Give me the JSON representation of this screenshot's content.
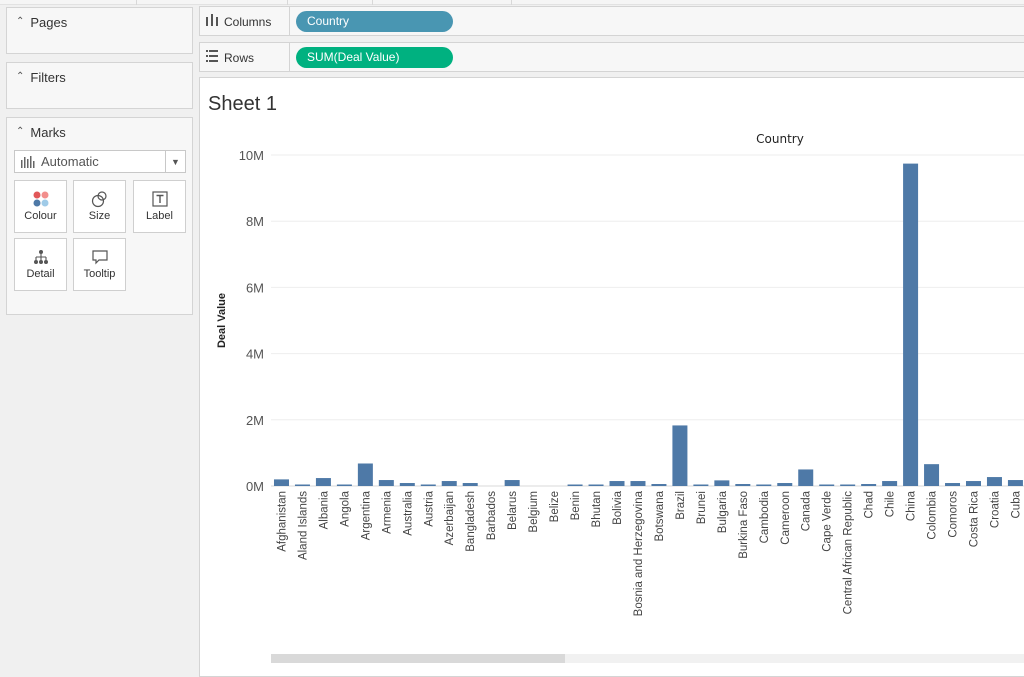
{
  "left_panel": {
    "pages": {
      "title": "Pages"
    },
    "filters": {
      "title": "Filters"
    },
    "marks": {
      "title": "Marks",
      "mark_type": "Automatic",
      "buttons": {
        "colour": "Colour",
        "size": "Size",
        "label": "Label",
        "detail": "Detail",
        "tooltip": "Tooltip"
      }
    }
  },
  "shelves": {
    "columns": {
      "label": "Columns",
      "pill": "Country",
      "pill_color": "#4996b2"
    },
    "rows": {
      "label": "Rows",
      "pill": "SUM(Deal Value)",
      "pill_color": "#00b180"
    }
  },
  "sheet": {
    "title": "Sheet 1"
  },
  "chart_data": {
    "type": "bar",
    "title": "Country",
    "xlabel": "",
    "ylabel": "Deal Value",
    "ylim": [
      0,
      10000000
    ],
    "yticks": [
      0,
      2000000,
      4000000,
      6000000,
      8000000,
      10000000
    ],
    "ytick_labels": [
      "0M",
      "2M",
      "4M",
      "6M",
      "8M",
      "10M"
    ],
    "grid": true,
    "bar_color": "#4e79a7",
    "categories": [
      "Afghanistan",
      "Aland Islands",
      "Albania",
      "Angola",
      "Argentina",
      "Armenia",
      "Australia",
      "Austria",
      "Azerbaijan",
      "Bangladesh",
      "Barbados",
      "Belarus",
      "Belgium",
      "Belize",
      "Benin",
      "Bhutan",
      "Bolivia",
      "Bosnia and Herzegovina",
      "Botswana",
      "Brazil",
      "Brunei",
      "Bulgaria",
      "Burkina Faso",
      "Cambodia",
      "Cameroon",
      "Canada",
      "Cape Verde",
      "Central African Republic",
      "Chad",
      "Chile",
      "China",
      "Colombia",
      "Comoros",
      "Costa Rica",
      "Croatia",
      "Cuba"
    ],
    "values": [
      200000,
      30000,
      240000,
      30000,
      680000,
      180000,
      90000,
      30000,
      150000,
      90000,
      0,
      180000,
      0,
      0,
      30000,
      30000,
      150000,
      150000,
      60000,
      1830000,
      30000,
      170000,
      60000,
      30000,
      90000,
      500000,
      30000,
      30000,
      60000,
      150000,
      9740000,
      660000,
      90000,
      150000,
      270000,
      180000
    ]
  }
}
